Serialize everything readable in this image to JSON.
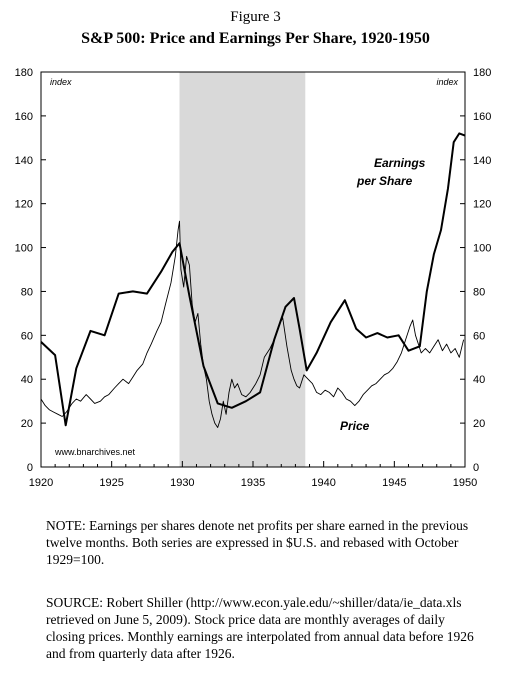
{
  "figure_label": "Figure 3",
  "title": "S&P 500: Price and Earnings Per Share, 1920-1950",
  "chart_data": {
    "type": "line",
    "title": "S&P 500: Price and Earnings Per Share, 1920-1950",
    "unit_left": "index",
    "unit_right": "index",
    "xlim": [
      1920,
      1950
    ],
    "ylim": [
      0,
      180
    ],
    "x_ticks": [
      "1920",
      "1925",
      "1930",
      "1935",
      "1940",
      "1945",
      "1950"
    ],
    "y_ticks": [
      "0",
      "20",
      "40",
      "60",
      "80",
      "100",
      "120",
      "140",
      "160",
      "180"
    ],
    "grid": false,
    "shaded_region": [
      1929.8,
      1938.7
    ],
    "annotations": [
      "www.bnarchives.net"
    ],
    "series": [
      {
        "name": "Earnings per Share",
        "x": [
          1920.0,
          1921.0,
          1921.75,
          1922.5,
          1923.5,
          1924.5,
          1925.5,
          1926.5,
          1927.5,
          1928.5,
          1929.3,
          1929.8,
          1930.5,
          1931.5,
          1932.5,
          1933.5,
          1934.5,
          1935.5,
          1936.5,
          1937.3,
          1937.9,
          1938.3,
          1938.8,
          1939.5,
          1940.5,
          1941.2,
          1941.5,
          1942.3,
          1943.0,
          1943.8,
          1944.5,
          1945.3,
          1946.0,
          1946.8,
          1947.3,
          1947.8,
          1948.3,
          1948.8,
          1949.2,
          1949.6,
          1950.0
        ],
        "values": [
          57,
          51,
          19,
          45,
          62,
          60,
          79,
          80,
          79,
          89,
          98,
          102,
          78,
          46,
          29,
          27,
          30,
          34,
          58,
          73,
          77,
          63,
          44,
          52,
          66,
          73,
          76,
          63,
          59,
          61,
          59,
          60,
          53,
          55,
          80,
          97,
          108,
          127,
          148,
          152,
          151
        ]
      },
      {
        "name": "Price",
        "x": [
          1920.0,
          1920.3,
          1920.6,
          1920.9,
          1921.2,
          1921.5,
          1921.8,
          1922.2,
          1922.5,
          1922.8,
          1923.2,
          1923.5,
          1923.8,
          1924.2,
          1924.5,
          1924.8,
          1925.2,
          1925.5,
          1925.8,
          1926.2,
          1926.5,
          1926.8,
          1927.2,
          1927.5,
          1927.8,
          1928.2,
          1928.5,
          1928.8,
          1929.2,
          1929.5,
          1929.7,
          1929.8,
          1929.9,
          1930.1,
          1930.3,
          1930.5,
          1930.7,
          1930.9,
          1931.1,
          1931.3,
          1931.5,
          1931.7,
          1931.9,
          1932.1,
          1932.3,
          1932.5,
          1932.7,
          1932.9,
          1933.1,
          1933.3,
          1933.5,
          1933.7,
          1933.9,
          1934.2,
          1934.5,
          1934.8,
          1935.2,
          1935.5,
          1935.8,
          1936.2,
          1936.5,
          1936.8,
          1937.1,
          1937.4,
          1937.7,
          1937.9,
          1938.1,
          1938.3,
          1938.6,
          1938.9,
          1939.2,
          1939.5,
          1939.8,
          1940.1,
          1940.4,
          1940.7,
          1941.0,
          1941.3,
          1941.6,
          1941.9,
          1942.2,
          1942.5,
          1942.8,
          1943.1,
          1943.4,
          1943.7,
          1944.0,
          1944.3,
          1944.6,
          1944.9,
          1945.2,
          1945.5,
          1945.8,
          1946.1,
          1946.3,
          1946.5,
          1946.7,
          1946.9,
          1947.2,
          1947.5,
          1947.8,
          1948.1,
          1948.4,
          1948.7,
          1949.0,
          1949.3,
          1949.6,
          1949.9
        ],
        "values": [
          31,
          28,
          26,
          25,
          24,
          23,
          25,
          29,
          31,
          30,
          33,
          31,
          29,
          30,
          32,
          33,
          36,
          38,
          40,
          38,
          41,
          44,
          47,
          52,
          56,
          62,
          66,
          74,
          84,
          96,
          108,
          112,
          90,
          82,
          96,
          92,
          74,
          66,
          70,
          56,
          46,
          40,
          30,
          24,
          20,
          18,
          22,
          30,
          24,
          34,
          40,
          36,
          38,
          33,
          32,
          34,
          38,
          42,
          50,
          54,
          58,
          64,
          68,
          55,
          44,
          40,
          37,
          36,
          42,
          40,
          38,
          34,
          33,
          35,
          34,
          32,
          36,
          34,
          31,
          30,
          28,
          30,
          33,
          35,
          37,
          38,
          40,
          42,
          43,
          45,
          48,
          52,
          58,
          64,
          67,
          60,
          56,
          52,
          54,
          52,
          55,
          58,
          53,
          56,
          52,
          54,
          50,
          58
        ]
      }
    ]
  },
  "series_label_earnings_line1": "Earnings",
  "series_label_earnings_line2": "per Share",
  "series_label_price": "Price",
  "watermark": "www.bnarchives.net",
  "note": "NOTE: Earnings per shares denote net profits per share earned in the previous twelve months. Both series are expressed in $U.S. and rebased with October 1929=100.",
  "source": "SOURCE: Robert Shiller (http://www.econ.yale.edu/~shiller/data/ie_data.xls retrieved on June 5, 2009). Stock price data are monthly averages of daily closing prices. Monthly earnings are interpolated from annual data before 1926 and from quarterly data after 1926."
}
